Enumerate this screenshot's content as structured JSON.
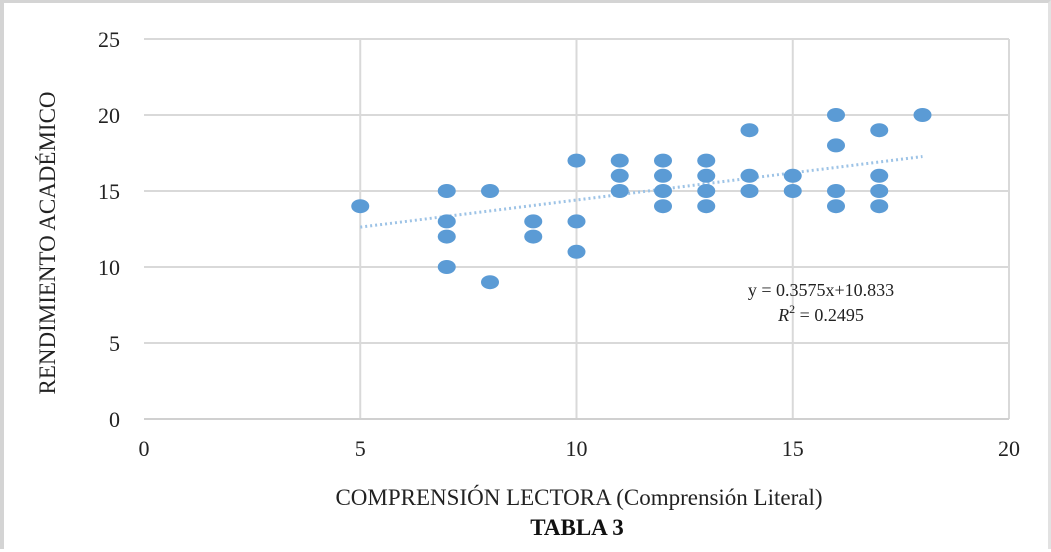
{
  "chart_data": {
    "type": "scatter",
    "title": "",
    "caption": "TABLA 3",
    "xlabel": "COMPRENSIÓN LECTORA (Comprensión Literal)",
    "ylabel": "RENDIMIENTO ACADÉMICO",
    "xlim": [
      0,
      20
    ],
    "ylim": [
      0,
      25
    ],
    "xticks": [
      "0",
      "5",
      "10",
      "15",
      "20"
    ],
    "yticks": [
      "0",
      "5",
      "10",
      "15",
      "20",
      "25"
    ],
    "grid": true,
    "marker_color": "#5b9bd5",
    "trendline_color": "#9dc3e6",
    "points": [
      [
        5,
        14
      ],
      [
        7,
        15
      ],
      [
        7,
        13
      ],
      [
        7,
        12
      ],
      [
        7,
        10
      ],
      [
        8,
        15
      ],
      [
        8,
        9
      ],
      [
        9,
        13
      ],
      [
        9,
        12
      ],
      [
        10,
        17
      ],
      [
        10,
        13
      ],
      [
        10,
        11
      ],
      [
        11,
        17
      ],
      [
        11,
        16
      ],
      [
        11,
        15
      ],
      [
        12,
        17
      ],
      [
        12,
        16
      ],
      [
        12,
        15
      ],
      [
        12,
        14
      ],
      [
        13,
        17
      ],
      [
        13,
        16
      ],
      [
        13,
        15
      ],
      [
        13,
        14
      ],
      [
        14,
        19
      ],
      [
        14,
        16
      ],
      [
        14,
        15
      ],
      [
        15,
        16
      ],
      [
        15,
        15
      ],
      [
        16,
        20
      ],
      [
        16,
        18
      ],
      [
        16,
        15
      ],
      [
        16,
        14
      ],
      [
        17,
        19
      ],
      [
        17,
        16
      ],
      [
        17,
        15
      ],
      [
        17,
        14
      ],
      [
        18,
        20
      ]
    ],
    "trendline": {
      "slope": 0.3575,
      "intercept": 10.833,
      "x_range": [
        5,
        18
      ]
    },
    "equation": "y = 0.3575x+10.833",
    "r2_label": "R",
    "r2_exponent": "2",
    "r2_value": " = 0.2495"
  }
}
